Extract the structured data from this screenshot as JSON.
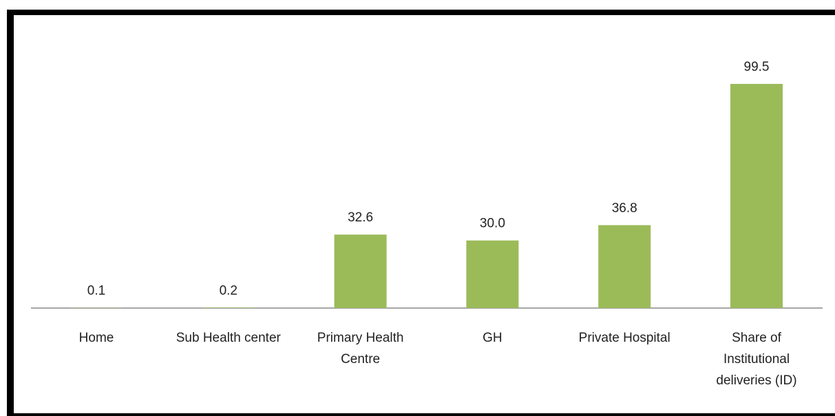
{
  "chart_data": {
    "type": "bar",
    "categories": [
      "Home",
      "Sub Health center",
      "Primary Health Centre",
      "GH",
      "Private Hospital",
      "Share of Institutional deliveries (ID)"
    ],
    "values": [
      0.1,
      0.2,
      32.6,
      30.0,
      36.8,
      99.5
    ],
    "value_labels": [
      "0.1",
      "0.2",
      "32.6",
      "30.0",
      "36.8",
      "99.5"
    ],
    "color": "#9bbb59"
  }
}
